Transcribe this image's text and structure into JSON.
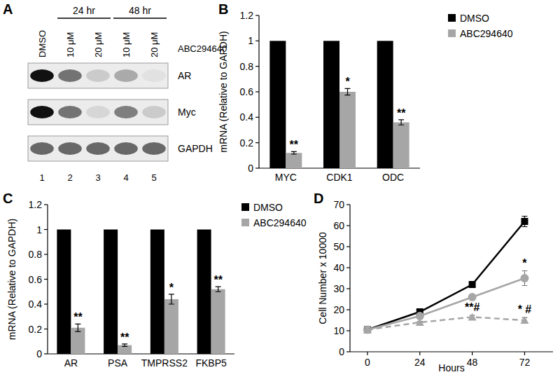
{
  "chart_data": [
    {
      "type": "blot",
      "title": "A",
      "categories": [
        "DMSO",
        "10 μM",
        "20 μM",
        "10 μM",
        "20 μM"
      ],
      "lane_numbers": [
        1,
        2,
        3,
        4,
        5
      ],
      "groups": [
        {
          "label": "24 hr",
          "start": 1,
          "end": 2
        },
        {
          "label": "48 hr",
          "start": 3,
          "end": 4
        }
      ],
      "annotations": [
        "ABC294640"
      ],
      "series": [
        {
          "name": "AR",
          "values": [
            1,
            0.55,
            0.15,
            0.3,
            0.05
          ]
        },
        {
          "name": "Myc",
          "values": [
            1,
            0.55,
            0.1,
            0.5,
            0.15
          ]
        },
        {
          "name": "GAPDH",
          "values": [
            0.6,
            0.6,
            0.6,
            0.6,
            0.6
          ]
        }
      ]
    },
    {
      "type": "bar",
      "title": "B",
      "ylabel": "mRNA (Relative to GAPDH)",
      "categories": [
        "MYC",
        "CDK1",
        "ODC"
      ],
      "ylim": [
        0,
        1.2
      ],
      "yticks": [
        0,
        0.2,
        0.4,
        0.6,
        0.8,
        1,
        1.2
      ],
      "grid": false,
      "legend": "upper right",
      "series": [
        {
          "name": "DMSO",
          "color": "#000000",
          "values": [
            1,
            1,
            1
          ]
        },
        {
          "name": "ABC294640",
          "color": "#a6a6a6",
          "values": [
            0.12,
            0.6,
            0.36
          ],
          "errors": [
            0.01,
            0.025,
            0.02
          ],
          "annotations": [
            "**",
            "*",
            "**"
          ]
        }
      ]
    },
    {
      "type": "bar",
      "title": "C",
      "ylabel": "mRNA (Relative to GAPDH)",
      "categories": [
        "AR",
        "PSA",
        "TMPRSS2",
        "FKBP5"
      ],
      "ylim": [
        0,
        1.2
      ],
      "yticks": [
        0,
        0.2,
        0.4,
        0.6,
        0.8,
        1,
        1.2
      ],
      "grid": false,
      "legend": "upper right",
      "series": [
        {
          "name": "DMSO",
          "color": "#000000",
          "values": [
            1,
            1,
            1,
            1
          ]
        },
        {
          "name": "ABC294640",
          "color": "#a6a6a6",
          "values": [
            0.21,
            0.07,
            0.44,
            0.52
          ],
          "errors": [
            0.03,
            0.01,
            0.04,
            0.02
          ],
          "annotations": [
            "**",
            "**",
            "*",
            "**"
          ]
        }
      ]
    },
    {
      "type": "line",
      "title": "D",
      "xlabel": "Hours",
      "ylabel": "Cell Number x 10000",
      "x": [
        0,
        24,
        48,
        72
      ],
      "xlim": [
        -8,
        85
      ],
      "xticks": [
        0,
        24,
        48,
        72
      ],
      "ylim": [
        0,
        70
      ],
      "yticks": [
        0,
        10,
        20,
        30,
        40,
        50,
        60,
        70
      ],
      "grid": false,
      "series": [
        {
          "color": "#000000",
          "marker": "square",
          "line_style": "solid",
          "values": [
            10.5,
            19,
            32,
            62
          ],
          "errors": [
            0.5,
            0.6,
            0.8,
            2.5
          ],
          "annotations": [
            null,
            null,
            null,
            null
          ]
        },
        {
          "color": "#a6a6a6",
          "marker": "circle",
          "line_style": "solid",
          "values": [
            10.5,
            17,
            26,
            35
          ],
          "errors": [
            0.5,
            0.6,
            0.8,
            3.5
          ],
          "annotations": [
            null,
            null,
            null,
            "*"
          ]
        },
        {
          "color": "#a6a6a6",
          "marker": "triangle",
          "line_style": "dashed",
          "values": [
            10.5,
            14,
            16.5,
            15
          ],
          "errors": [
            0.5,
            0.5,
            0.8,
            1.2
          ],
          "annotations": [
            null,
            null,
            "**#",
            "* #"
          ]
        }
      ]
    }
  ]
}
